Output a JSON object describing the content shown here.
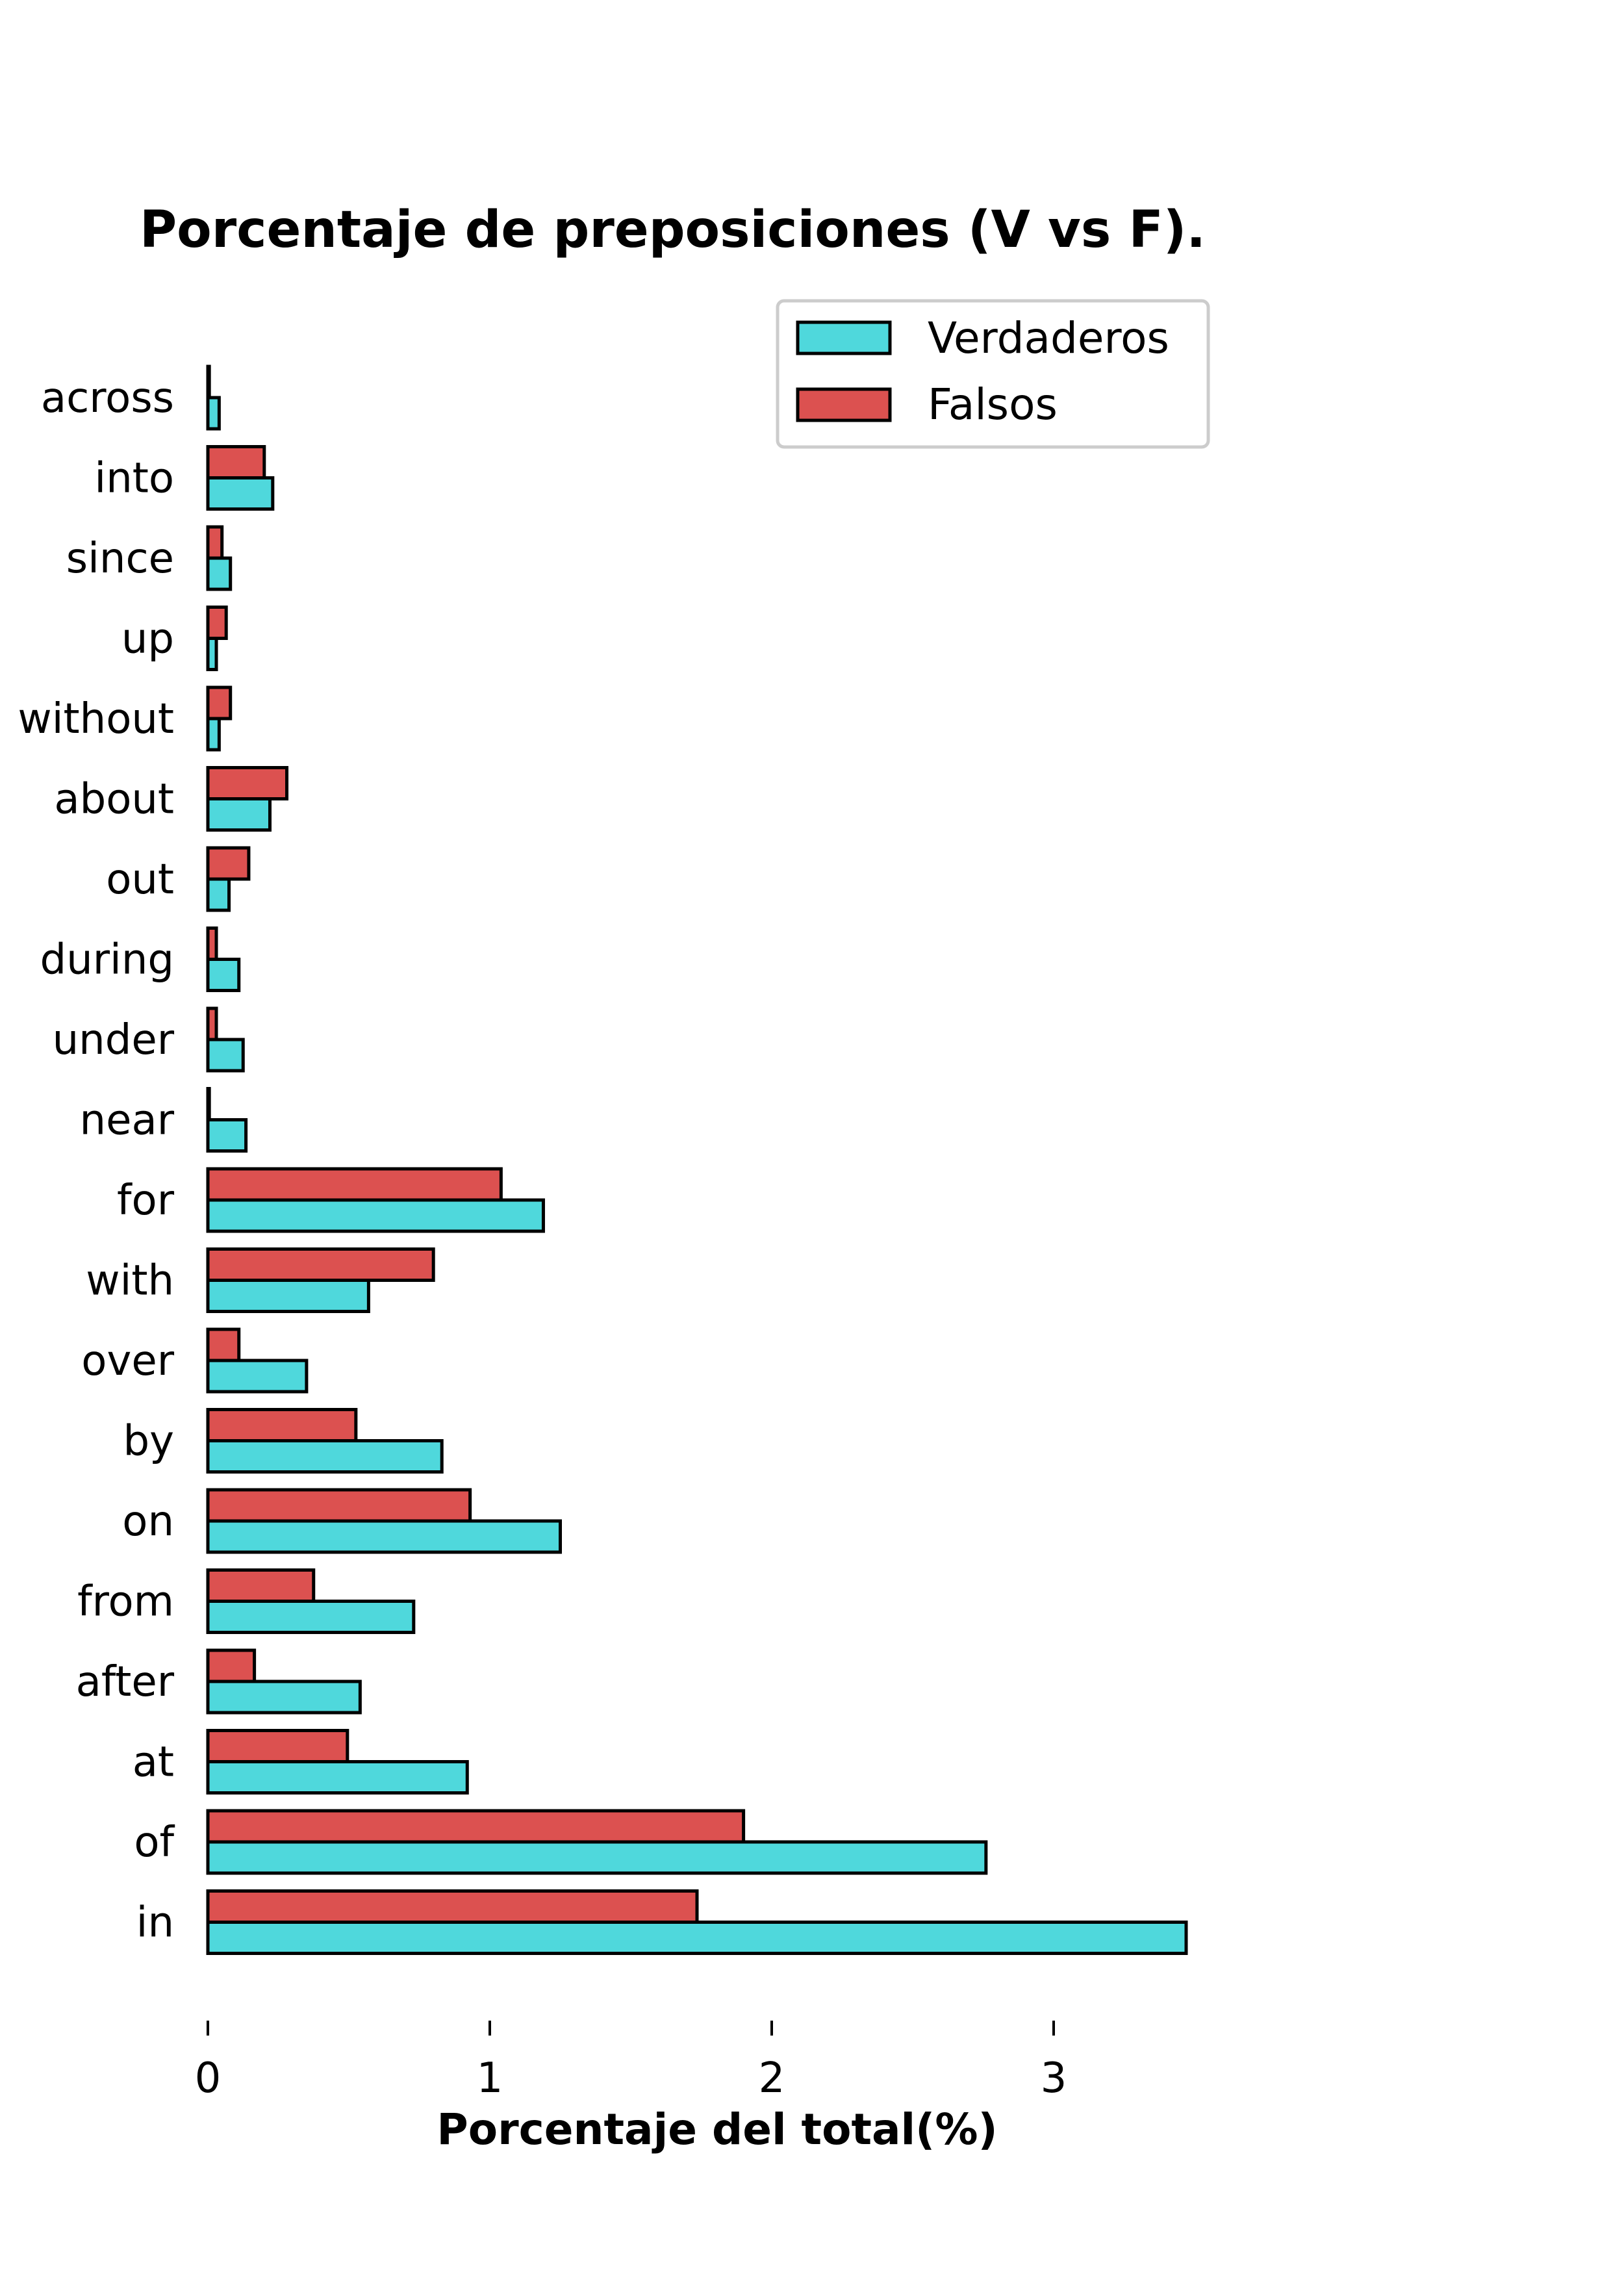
{
  "chart_data": {
    "type": "bar",
    "orientation": "horizontal",
    "title": "Porcentaje de preposiciones (V vs F).",
    "xlabel": "Porcentaje del total(%)",
    "ylabel": "",
    "xlim": [
      0,
      3.6
    ],
    "xticks": [
      "0",
      "1",
      "2",
      "3"
    ],
    "grid": false,
    "legend_position": "top-right",
    "categories": [
      "across",
      "into",
      "since",
      "up",
      "without",
      "about",
      "out",
      "during",
      "under",
      "near",
      "for",
      "with",
      "over",
      "by",
      "on",
      "from",
      "after",
      "at",
      "of",
      "in"
    ],
    "series": [
      {
        "name": "Verdaderos",
        "color": "#4fd8dc",
        "values": [
          0.04,
          0.23,
          0.08,
          0.03,
          0.04,
          0.22,
          0.075,
          0.11,
          0.125,
          0.135,
          1.19,
          0.57,
          0.35,
          0.83,
          1.25,
          0.73,
          0.54,
          0.92,
          2.76,
          3.47
        ]
      },
      {
        "name": "Falsos",
        "color": "#dc5150",
        "values": [
          0.005,
          0.2,
          0.05,
          0.065,
          0.08,
          0.28,
          0.145,
          0.03,
          0.03,
          0.005,
          1.04,
          0.8,
          0.11,
          0.525,
          0.93,
          0.375,
          0.165,
          0.495,
          1.9,
          1.735
        ]
      }
    ]
  }
}
